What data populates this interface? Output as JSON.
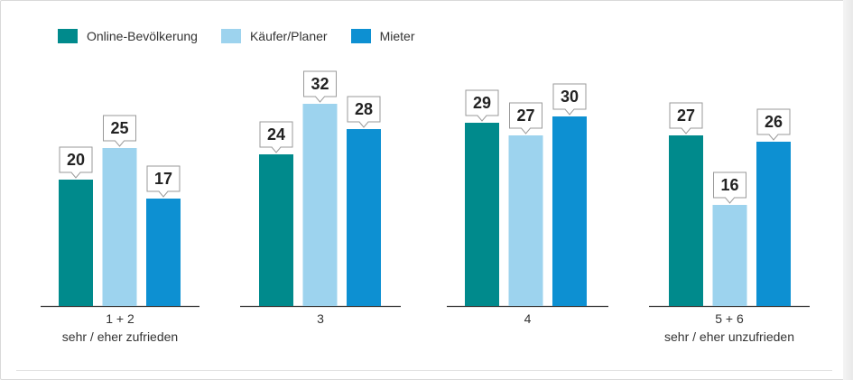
{
  "chart_data": {
    "type": "bar",
    "categories": [
      [
        "1 + 2",
        "sehr / eher zufrieden"
      ],
      [
        "3"
      ],
      [
        "4"
      ],
      [
        "5 + 6",
        "sehr / eher unzufrieden"
      ]
    ],
    "series": [
      {
        "name": "Online-Bevölkerung",
        "color": "#008a8c",
        "values": [
          20,
          24,
          29,
          27
        ]
      },
      {
        "name": "Käufer/Planer",
        "color": "#9dd3ee",
        "values": [
          25,
          32,
          27,
          16
        ]
      },
      {
        "name": "Mieter",
        "color": "#0d90d2",
        "values": [
          17,
          28,
          30,
          26
        ]
      }
    ],
    "ylim": [
      0,
      40
    ],
    "grid": false,
    "legend_position": "top-left",
    "data_labels": true
  }
}
